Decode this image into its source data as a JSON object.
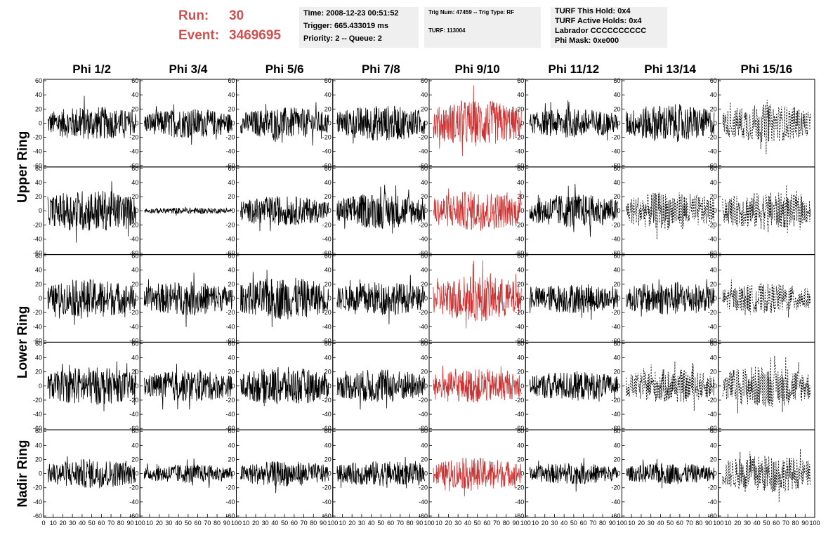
{
  "header": {
    "run_label": "Run:",
    "run_value": "30",
    "event_label": "Event:",
    "event_value": "3469695",
    "time": "Time: 2008-12-23 00:51:52",
    "trigger": "Trigger: 665.433019 ms",
    "priority": "Priority: 2 -- Queue: 2",
    "trig_num": "Trig Num: 47459 -- Trig Type: RF",
    "turf": "TURF: 113004",
    "turf_this_hold": "TURF This Hold: 0x4",
    "turf_active_holds": "TURF Active Holds: 0x4",
    "labrador": "Labrador CCCCCCCCCC",
    "phi_mask": "Phi Mask: 0xe000"
  },
  "colors": {
    "trace_normal": "#000000",
    "trace_triggered": "#cc3333",
    "run_text": "#d05050",
    "info_bg": "#efefef"
  },
  "chart_data": {
    "type": "line",
    "columns": [
      "Phi 1/2",
      "Phi 3/4",
      "Phi 5/6",
      "Phi 7/8",
      "Phi 9/10",
      "Phi 11/12",
      "Phi 13/14",
      "Phi 15/16"
    ],
    "ring_labels": [
      {
        "label": "Upper Ring",
        "rows": [
          0,
          1
        ]
      },
      {
        "label": "Lower Ring",
        "rows": [
          2,
          3
        ]
      },
      {
        "label": "Nadir Ring",
        "rows": [
          4
        ]
      }
    ],
    "rows": 5,
    "xlim": [
      0,
      100
    ],
    "ylim": [
      -60,
      60
    ],
    "y_ticks": [
      -60,
      -40,
      -20,
      0,
      20,
      40,
      60
    ],
    "x_ticks": [
      0,
      10,
      20,
      30,
      40,
      50,
      60,
      70,
      80,
      90,
      100
    ],
    "highlight_column": 4,
    "amplitudes": [
      [
        16,
        14,
        15,
        17,
        22,
        14,
        18,
        18
      ],
      [
        20,
        3,
        14,
        17,
        19,
        16,
        18,
        18
      ],
      [
        18,
        16,
        20,
        16,
        22,
        14,
        16,
        14
      ],
      [
        18,
        15,
        18,
        16,
        16,
        14,
        16,
        20
      ],
      [
        14,
        9,
        12,
        12,
        15,
        10,
        10,
        18
      ]
    ],
    "dashed_cells": [
      [
        0,
        7
      ],
      [
        1,
        6
      ],
      [
        1,
        7
      ],
      [
        2,
        7
      ],
      [
        3,
        6
      ],
      [
        3,
        7
      ],
      [
        4,
        7
      ]
    ]
  }
}
